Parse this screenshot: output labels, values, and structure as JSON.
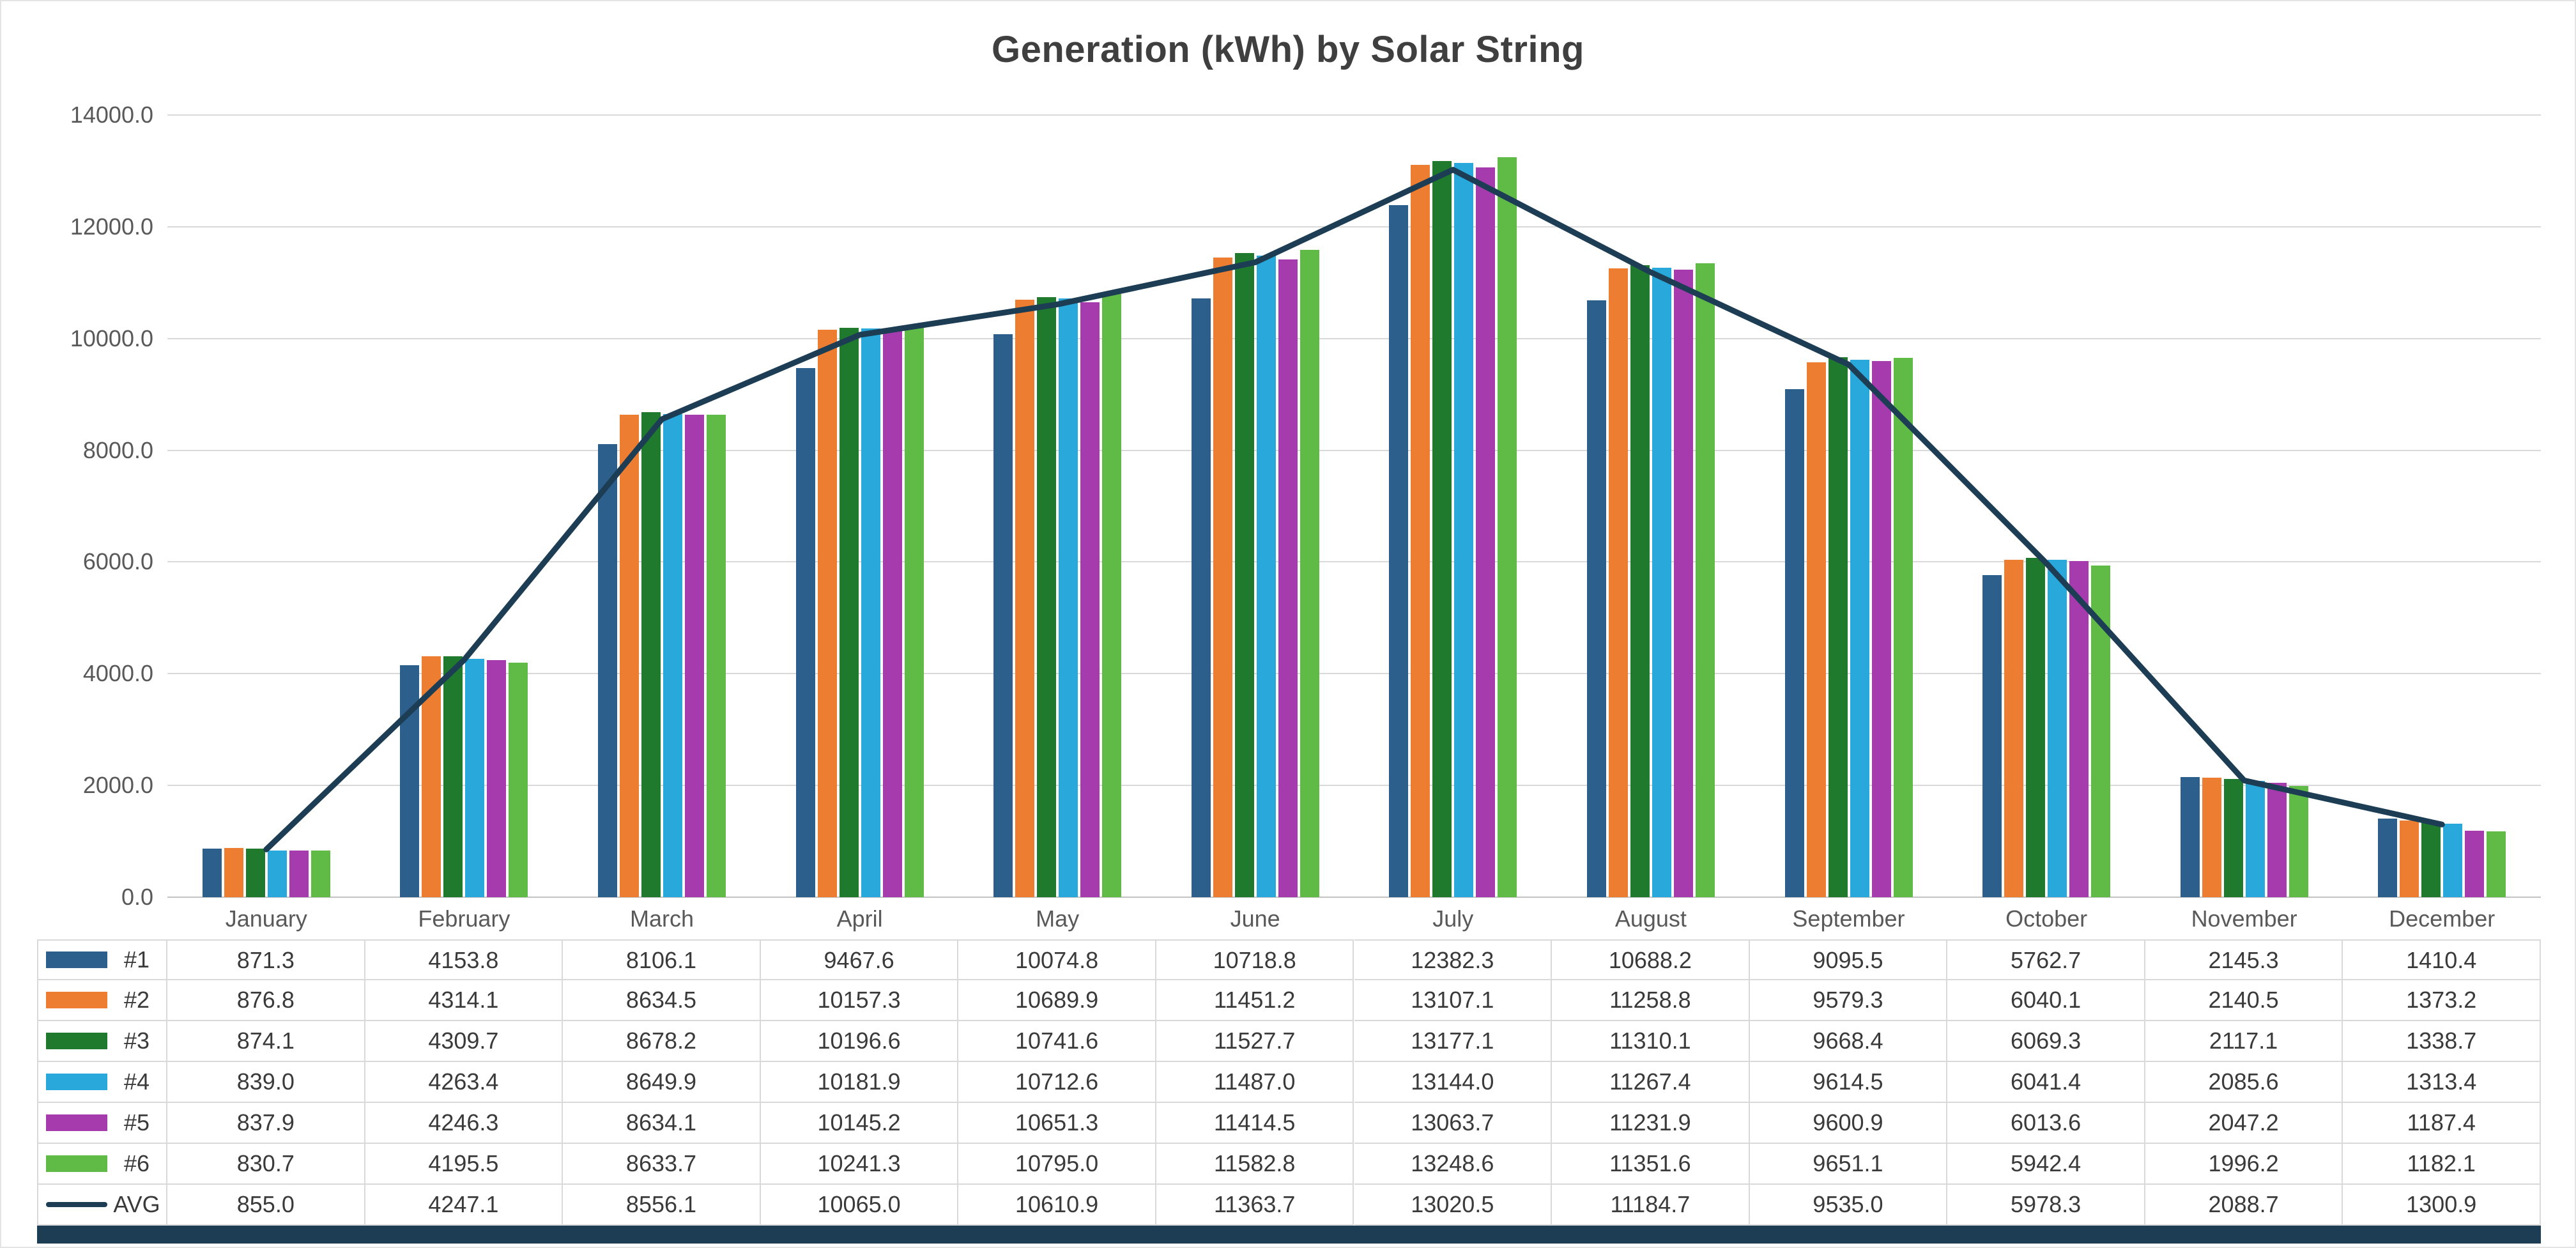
{
  "chart_data": {
    "type": "bar",
    "title": "Generation (kWh) by Solar String",
    "xlabel": "",
    "ylabel": "",
    "ylim": [
      0,
      14000
    ],
    "grid": true,
    "legend_position": "data-table-below-chart",
    "y_ticks": [
      0,
      2000,
      4000,
      6000,
      8000,
      10000,
      12000,
      14000
    ],
    "y_tick_labels": [
      "0.0",
      "2000.0",
      "4000.0",
      "6000.0",
      "8000.0",
      "10000.0",
      "12000.0",
      "14000.0"
    ],
    "categories": [
      "January",
      "February",
      "March",
      "April",
      "May",
      "June",
      "July",
      "August",
      "September",
      "October",
      "November",
      "December"
    ],
    "series": [
      {
        "name": "#1",
        "type": "bar",
        "color": "#2D5F8C",
        "values": [
          871.3,
          4153.8,
          8106.1,
          9467.6,
          10074.8,
          10718.8,
          12382.3,
          10688.2,
          9095.5,
          5762.7,
          2145.3,
          1410.4
        ]
      },
      {
        "name": "#2",
        "type": "bar",
        "color": "#ED7D31",
        "values": [
          876.8,
          4314.1,
          8634.5,
          10157.3,
          10689.9,
          11451.2,
          13107.1,
          11258.8,
          9579.3,
          6040.1,
          2140.5,
          1373.2
        ]
      },
      {
        "name": "#3",
        "type": "bar",
        "color": "#1F7A2E",
        "values": [
          874.1,
          4309.7,
          8678.2,
          10196.6,
          10741.6,
          11527.7,
          13177.1,
          11310.1,
          9668.4,
          6069.3,
          2117.1,
          1338.7
        ]
      },
      {
        "name": "#4",
        "type": "bar",
        "color": "#29A8DC",
        "values": [
          839.0,
          4263.4,
          8649.9,
          10181.9,
          10712.6,
          11487.0,
          13144.0,
          11267.4,
          9614.5,
          6041.4,
          2085.6,
          1313.4
        ]
      },
      {
        "name": "#5",
        "type": "bar",
        "color": "#A63BAE",
        "values": [
          837.9,
          4246.3,
          8634.1,
          10145.2,
          10651.3,
          11414.5,
          13063.7,
          11231.9,
          9600.9,
          6013.6,
          2047.2,
          1187.4
        ]
      },
      {
        "name": "#6",
        "type": "bar",
        "color": "#5FBA46",
        "values": [
          830.7,
          4195.5,
          8633.7,
          10241.3,
          10795.0,
          11582.8,
          13248.6,
          11351.6,
          9651.1,
          5942.4,
          1996.2,
          1182.1
        ]
      },
      {
        "name": "AVG",
        "type": "line",
        "color": "#1C3D54",
        "values": [
          855.0,
          4247.1,
          8556.1,
          10065.0,
          10610.9,
          11363.7,
          13020.5,
          11184.7,
          9535.0,
          5978.3,
          2088.7,
          1300.9
        ]
      }
    ]
  }
}
